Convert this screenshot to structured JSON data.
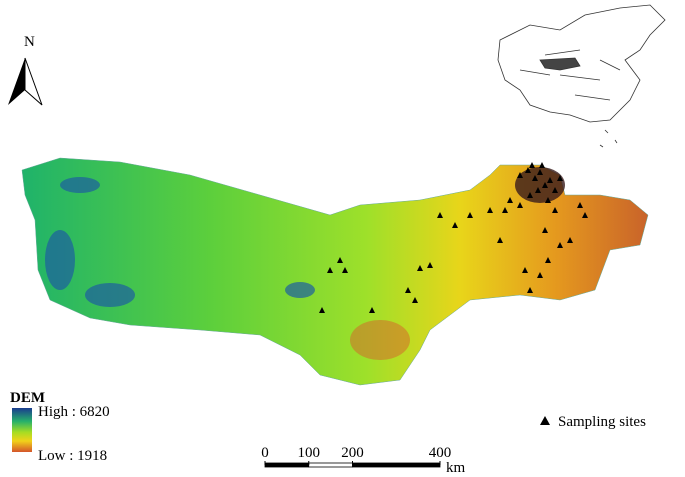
{
  "north_label": "N",
  "legend": {
    "title": "DEM",
    "high": "High : 6820",
    "low": "Low : 1918"
  },
  "symbol_legend": "Sampling sites",
  "scale_bar": {
    "ticks": [
      0,
      100,
      200,
      400
    ],
    "unit": "km"
  }
}
